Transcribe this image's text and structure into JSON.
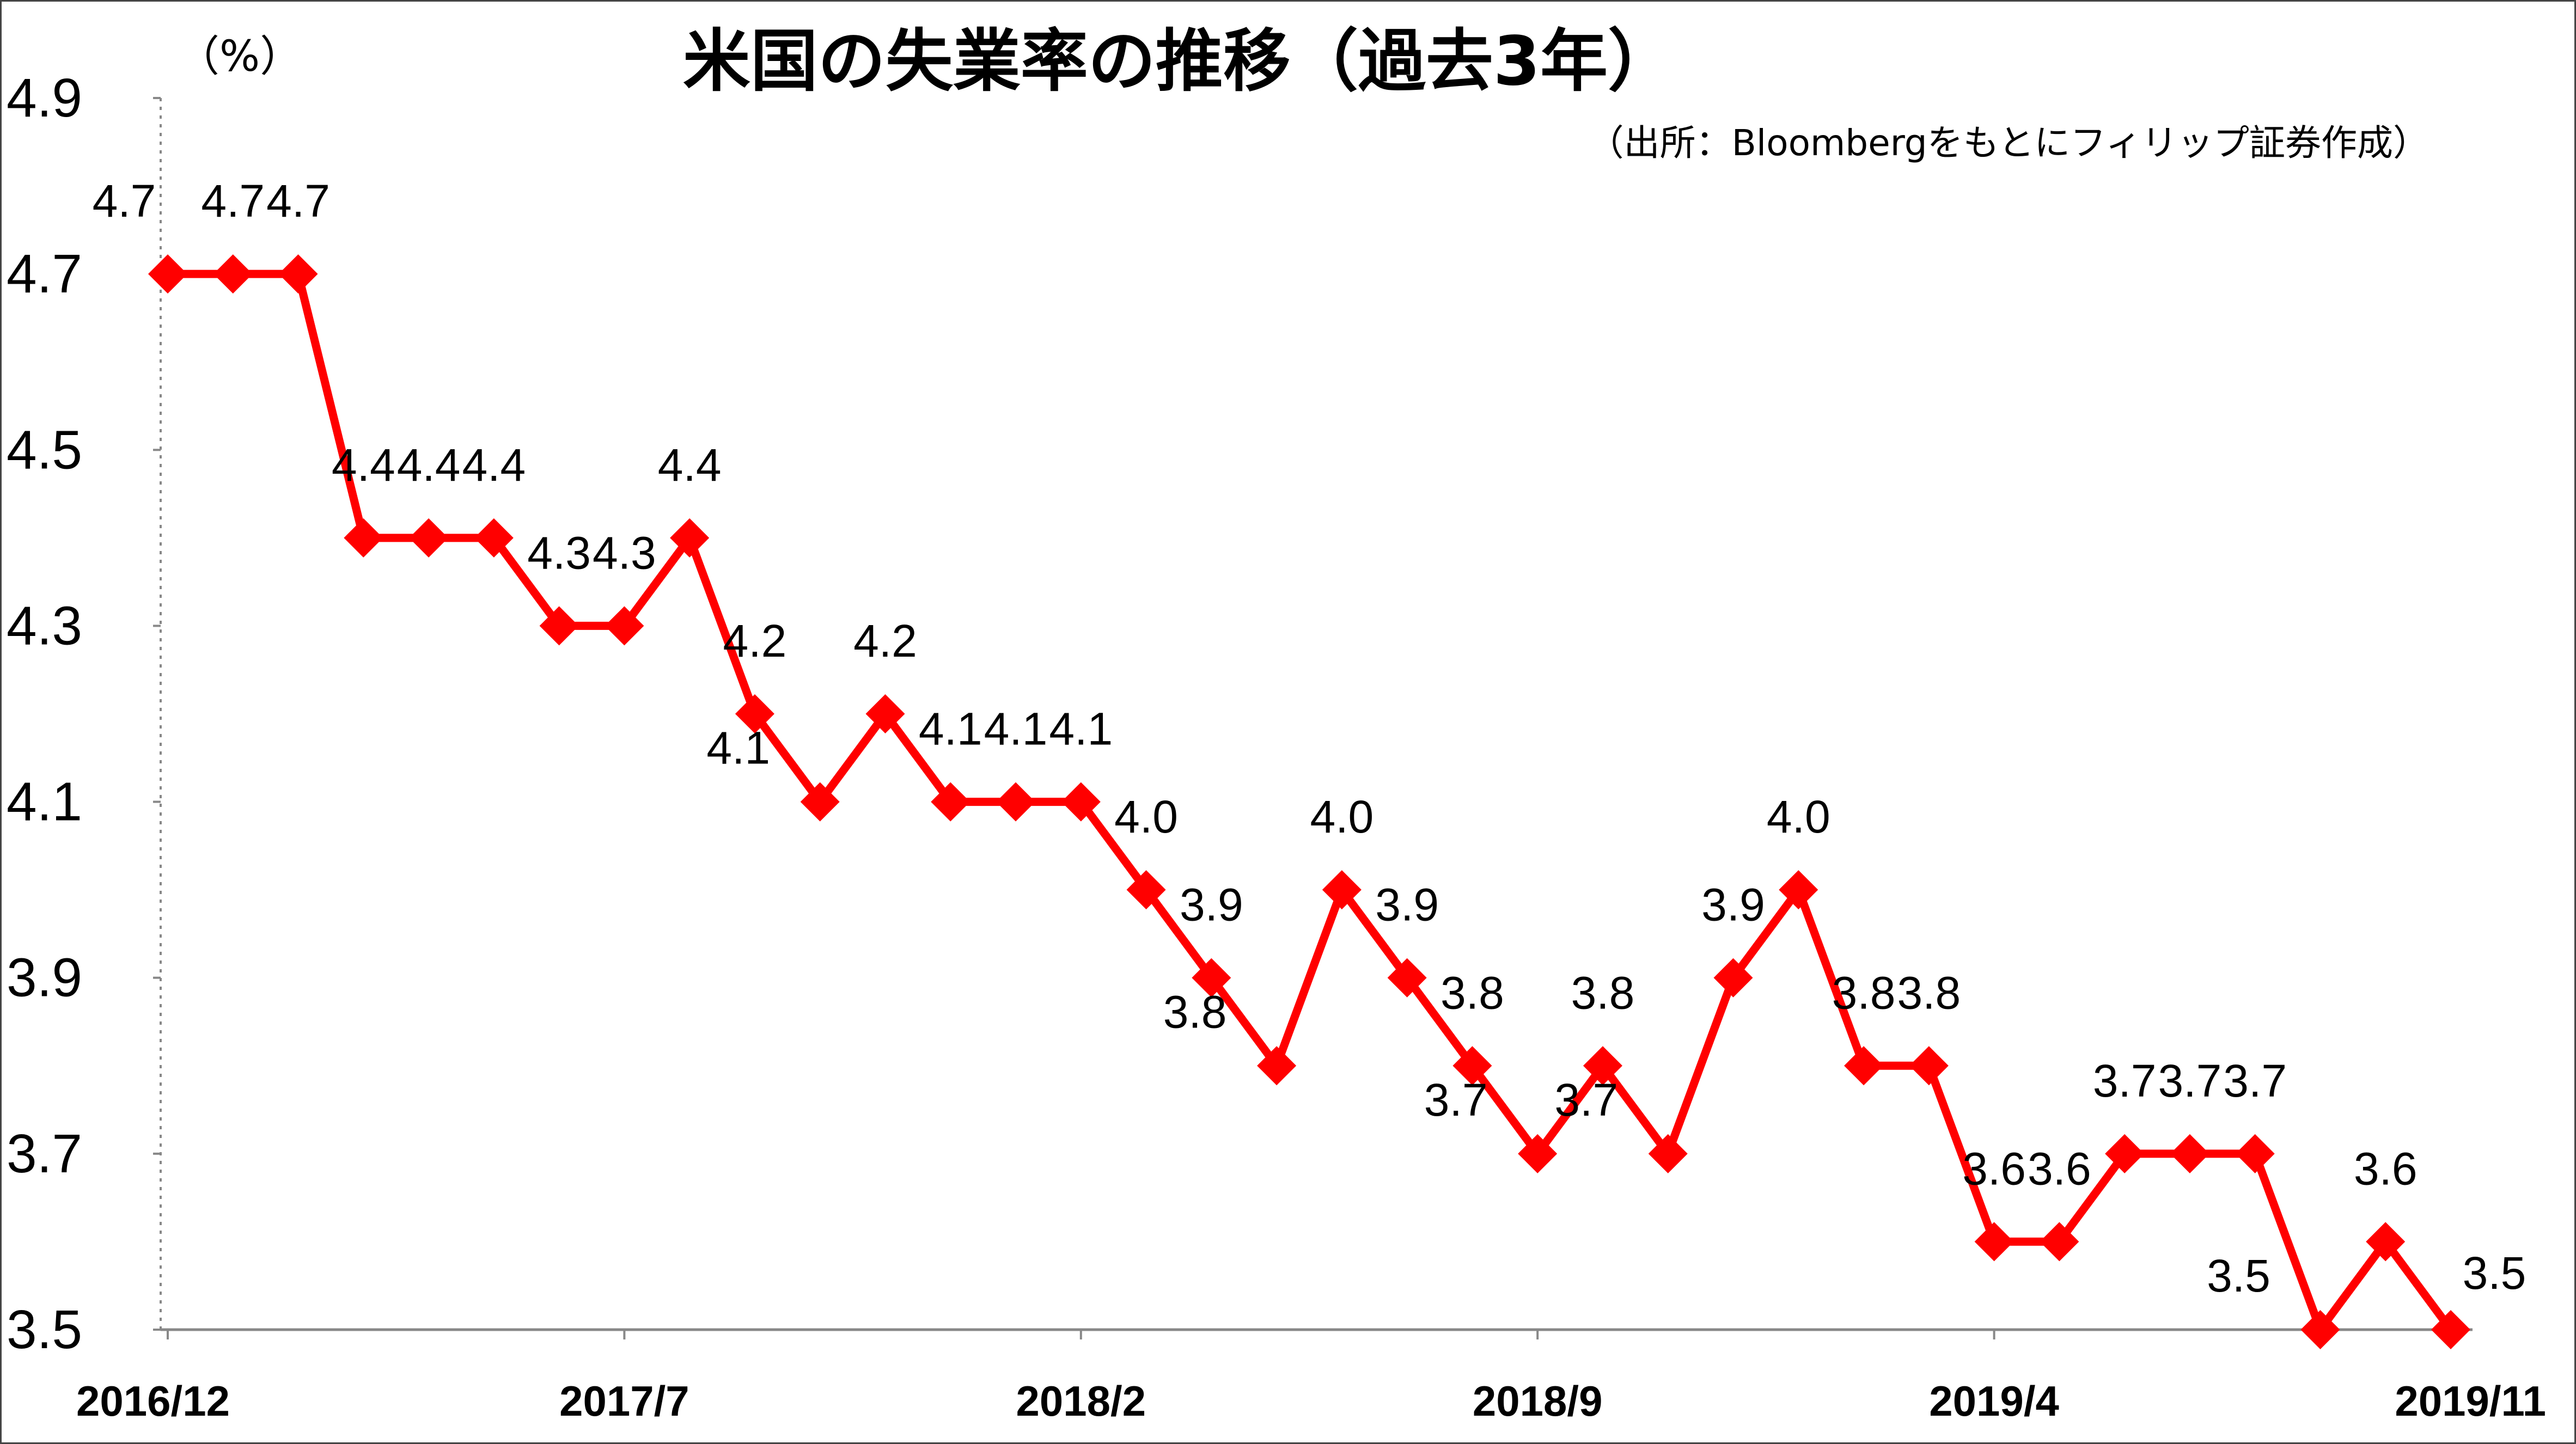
{
  "chart_data": {
    "type": "line",
    "title": "米国の失業率の推移（過去3年）",
    "source": "（出所：Bloombergをもとにフィリップ証券作成）",
    "unit_label": "（%）",
    "xlabel": "",
    "ylabel": "",
    "ylim": [
      3.5,
      4.9
    ],
    "yticks": [
      3.5,
      3.7,
      3.9,
      4.1,
      4.3,
      4.5,
      4.7,
      4.9
    ],
    "ytick_labels": [
      "3.5",
      "3.7",
      "3.9",
      "4.1",
      "4.3",
      "4.5",
      "4.7",
      "4.9"
    ],
    "x": [
      "2016/12",
      "2017/1",
      "2017/2",
      "2017/3",
      "2017/4",
      "2017/5",
      "2017/6",
      "2017/7",
      "2017/8",
      "2017/9",
      "2017/10",
      "2017/11",
      "2017/12",
      "2018/1",
      "2018/2",
      "2018/3",
      "2018/4",
      "2018/5",
      "2018/6",
      "2018/7",
      "2018/8",
      "2018/9",
      "2018/10",
      "2018/11",
      "2018/12",
      "2019/1",
      "2019/2",
      "2019/3",
      "2019/4",
      "2019/5",
      "2019/6",
      "2019/7",
      "2019/8",
      "2019/9",
      "2019/10",
      "2019/11"
    ],
    "xtick_labels": [
      "2016/12",
      "2017/7",
      "2018/2",
      "2018/9",
      "2019/4",
      "2019/11"
    ],
    "xtick_indices": [
      0,
      7,
      14,
      21,
      28,
      35
    ],
    "series": [
      {
        "color": "#ff0000",
        "marker": "diamond",
        "values": [
          4.7,
          4.7,
          4.7,
          4.4,
          4.4,
          4.4,
          4.3,
          4.3,
          4.4,
          4.2,
          4.1,
          4.2,
          4.1,
          4.1,
          4.1,
          4.0,
          3.9,
          3.8,
          4.0,
          3.9,
          3.8,
          3.7,
          3.8,
          3.7,
          3.9,
          4.0,
          3.8,
          3.8,
          3.6,
          3.6,
          3.7,
          3.7,
          3.7,
          3.5,
          3.6,
          3.5
        ],
        "labels": [
          "4.7",
          "4.7",
          "4.7",
          "4.4",
          "4.4",
          "4.4",
          "4.3",
          "4.3",
          "4.4",
          "4.2",
          "4.1",
          "4.2",
          "4.1",
          "4.1",
          "4.1",
          "4.0",
          "3.9",
          "3.8",
          "4.0",
          "3.9",
          "3.8",
          "3.7",
          "3.8",
          "3.7",
          "3.9",
          "4.0",
          "3.8",
          "3.8",
          "3.6",
          "3.6",
          "3.7",
          "3.7",
          "3.7",
          "3.5",
          "3.6",
          "3.5"
        ]
      }
    ],
    "grid": false,
    "legend": "none"
  }
}
